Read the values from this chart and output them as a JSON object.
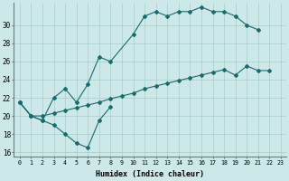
{
  "xlabel": "Humidex (Indice chaleur)",
  "bg_color": "#cde8e8",
  "grid_color": "#aacccc",
  "line_color": "#1a6b6b",
  "xlim": [
    -0.5,
    23.5
  ],
  "ylim": [
    15.5,
    32.5
  ],
  "yticks": [
    16,
    18,
    20,
    22,
    24,
    26,
    28,
    30
  ],
  "xticks": [
    0,
    1,
    2,
    3,
    4,
    5,
    6,
    7,
    8,
    9,
    10,
    11,
    12,
    13,
    14,
    15,
    16,
    17,
    18,
    19,
    20,
    21,
    22,
    23
  ],
  "line1_x": [
    0,
    1,
    2,
    3,
    4,
    5,
    6,
    7,
    8
  ],
  "line1_y": [
    21.5,
    20.0,
    19.5,
    19.0,
    18.0,
    17.0,
    16.5,
    19.5,
    21.0
  ],
  "line2_x": [
    0,
    1,
    2,
    3,
    4,
    5,
    6,
    7,
    8,
    10,
    11,
    12,
    13,
    14,
    15,
    16,
    17,
    18,
    19,
    20,
    21
  ],
  "line2_y": [
    21.5,
    20.0,
    19.5,
    22.0,
    23.0,
    21.5,
    23.5,
    26.5,
    26.0,
    29.0,
    31.0,
    31.5,
    31.0,
    31.5,
    31.5,
    32.0,
    31.5,
    31.5,
    31.0,
    30.0,
    29.5
  ],
  "line3_x": [
    0,
    1,
    2,
    3,
    4,
    5,
    6,
    7,
    8,
    9,
    10,
    11,
    12,
    13,
    14,
    15,
    16,
    17,
    18,
    19,
    20,
    21,
    22
  ],
  "line3_y": [
    21.5,
    20.0,
    20.0,
    20.3,
    20.6,
    20.9,
    21.2,
    21.5,
    21.9,
    22.2,
    22.5,
    23.0,
    23.3,
    23.6,
    23.9,
    24.2,
    24.5,
    24.8,
    25.1,
    24.5,
    25.5,
    25.0,
    25.0
  ]
}
